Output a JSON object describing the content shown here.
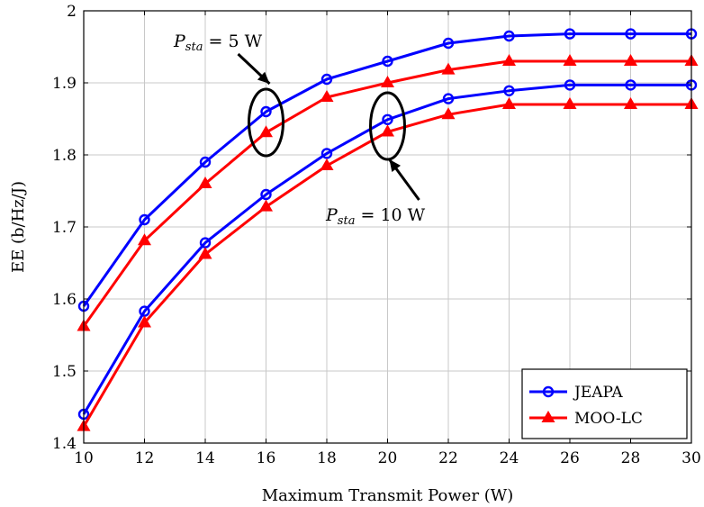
{
  "chart_data": {
    "type": "line",
    "xlabel": "Maximum Transmit Power (W)",
    "ylabel": "EE (b/Hz/J)",
    "xlim": [
      10,
      30
    ],
    "ylim": [
      1.4,
      2.0
    ],
    "x_ticks": [
      10,
      12,
      14,
      16,
      18,
      20,
      22,
      24,
      26,
      28,
      30
    ],
    "y_ticks": [
      1.4,
      1.5,
      1.6,
      1.7,
      1.8,
      1.9,
      2.0
    ],
    "y_tick_labels": [
      "1.4",
      "1.5",
      "1.6",
      "1.7",
      "1.8",
      "1.9",
      "2"
    ],
    "grid": true,
    "legend_position": "bottom-right",
    "x": [
      10,
      12,
      14,
      16,
      18,
      20,
      22,
      24,
      26,
      28,
      30
    ],
    "series": [
      {
        "name": "JEAPA",
        "group": "Psta5",
        "color": "#0000ff",
        "marker": "circle",
        "values": [
          1.59,
          1.71,
          1.79,
          1.86,
          1.905,
          1.93,
          1.955,
          1.965,
          1.968,
          1.968,
          1.968
        ]
      },
      {
        "name": "MOO-LC",
        "group": "Psta5",
        "color": "#ff0000",
        "marker": "triangle",
        "values": [
          1.562,
          1.681,
          1.76,
          1.831,
          1.88,
          1.9,
          1.918,
          1.93,
          1.93,
          1.93,
          1.93
        ]
      },
      {
        "name": "JEAPA",
        "group": "Psta10",
        "color": "#0000ff",
        "marker": "circle",
        "values": [
          1.44,
          1.583,
          1.678,
          1.745,
          1.802,
          1.849,
          1.878,
          1.889,
          1.897,
          1.897,
          1.897
        ]
      },
      {
        "name": "MOO-LC",
        "group": "Psta10",
        "color": "#ff0000",
        "marker": "triangle",
        "values": [
          1.423,
          1.567,
          1.662,
          1.728,
          1.785,
          1.832,
          1.856,
          1.87,
          1.87,
          1.87,
          1.87
        ]
      }
    ],
    "legend": [
      {
        "label": "JEAPA",
        "color": "#0000ff",
        "marker": "circle"
      },
      {
        "label": "MOO-LC",
        "color": "#ff0000",
        "marker": "triangle"
      }
    ],
    "annotations": [
      {
        "main": "P",
        "sub": "sta",
        "rest": " = 5 W",
        "x": 16,
        "y": 1.845
      },
      {
        "main": "P",
        "sub": "sta",
        "rest": " = 10 W",
        "x": 20,
        "y": 1.84
      }
    ]
  }
}
